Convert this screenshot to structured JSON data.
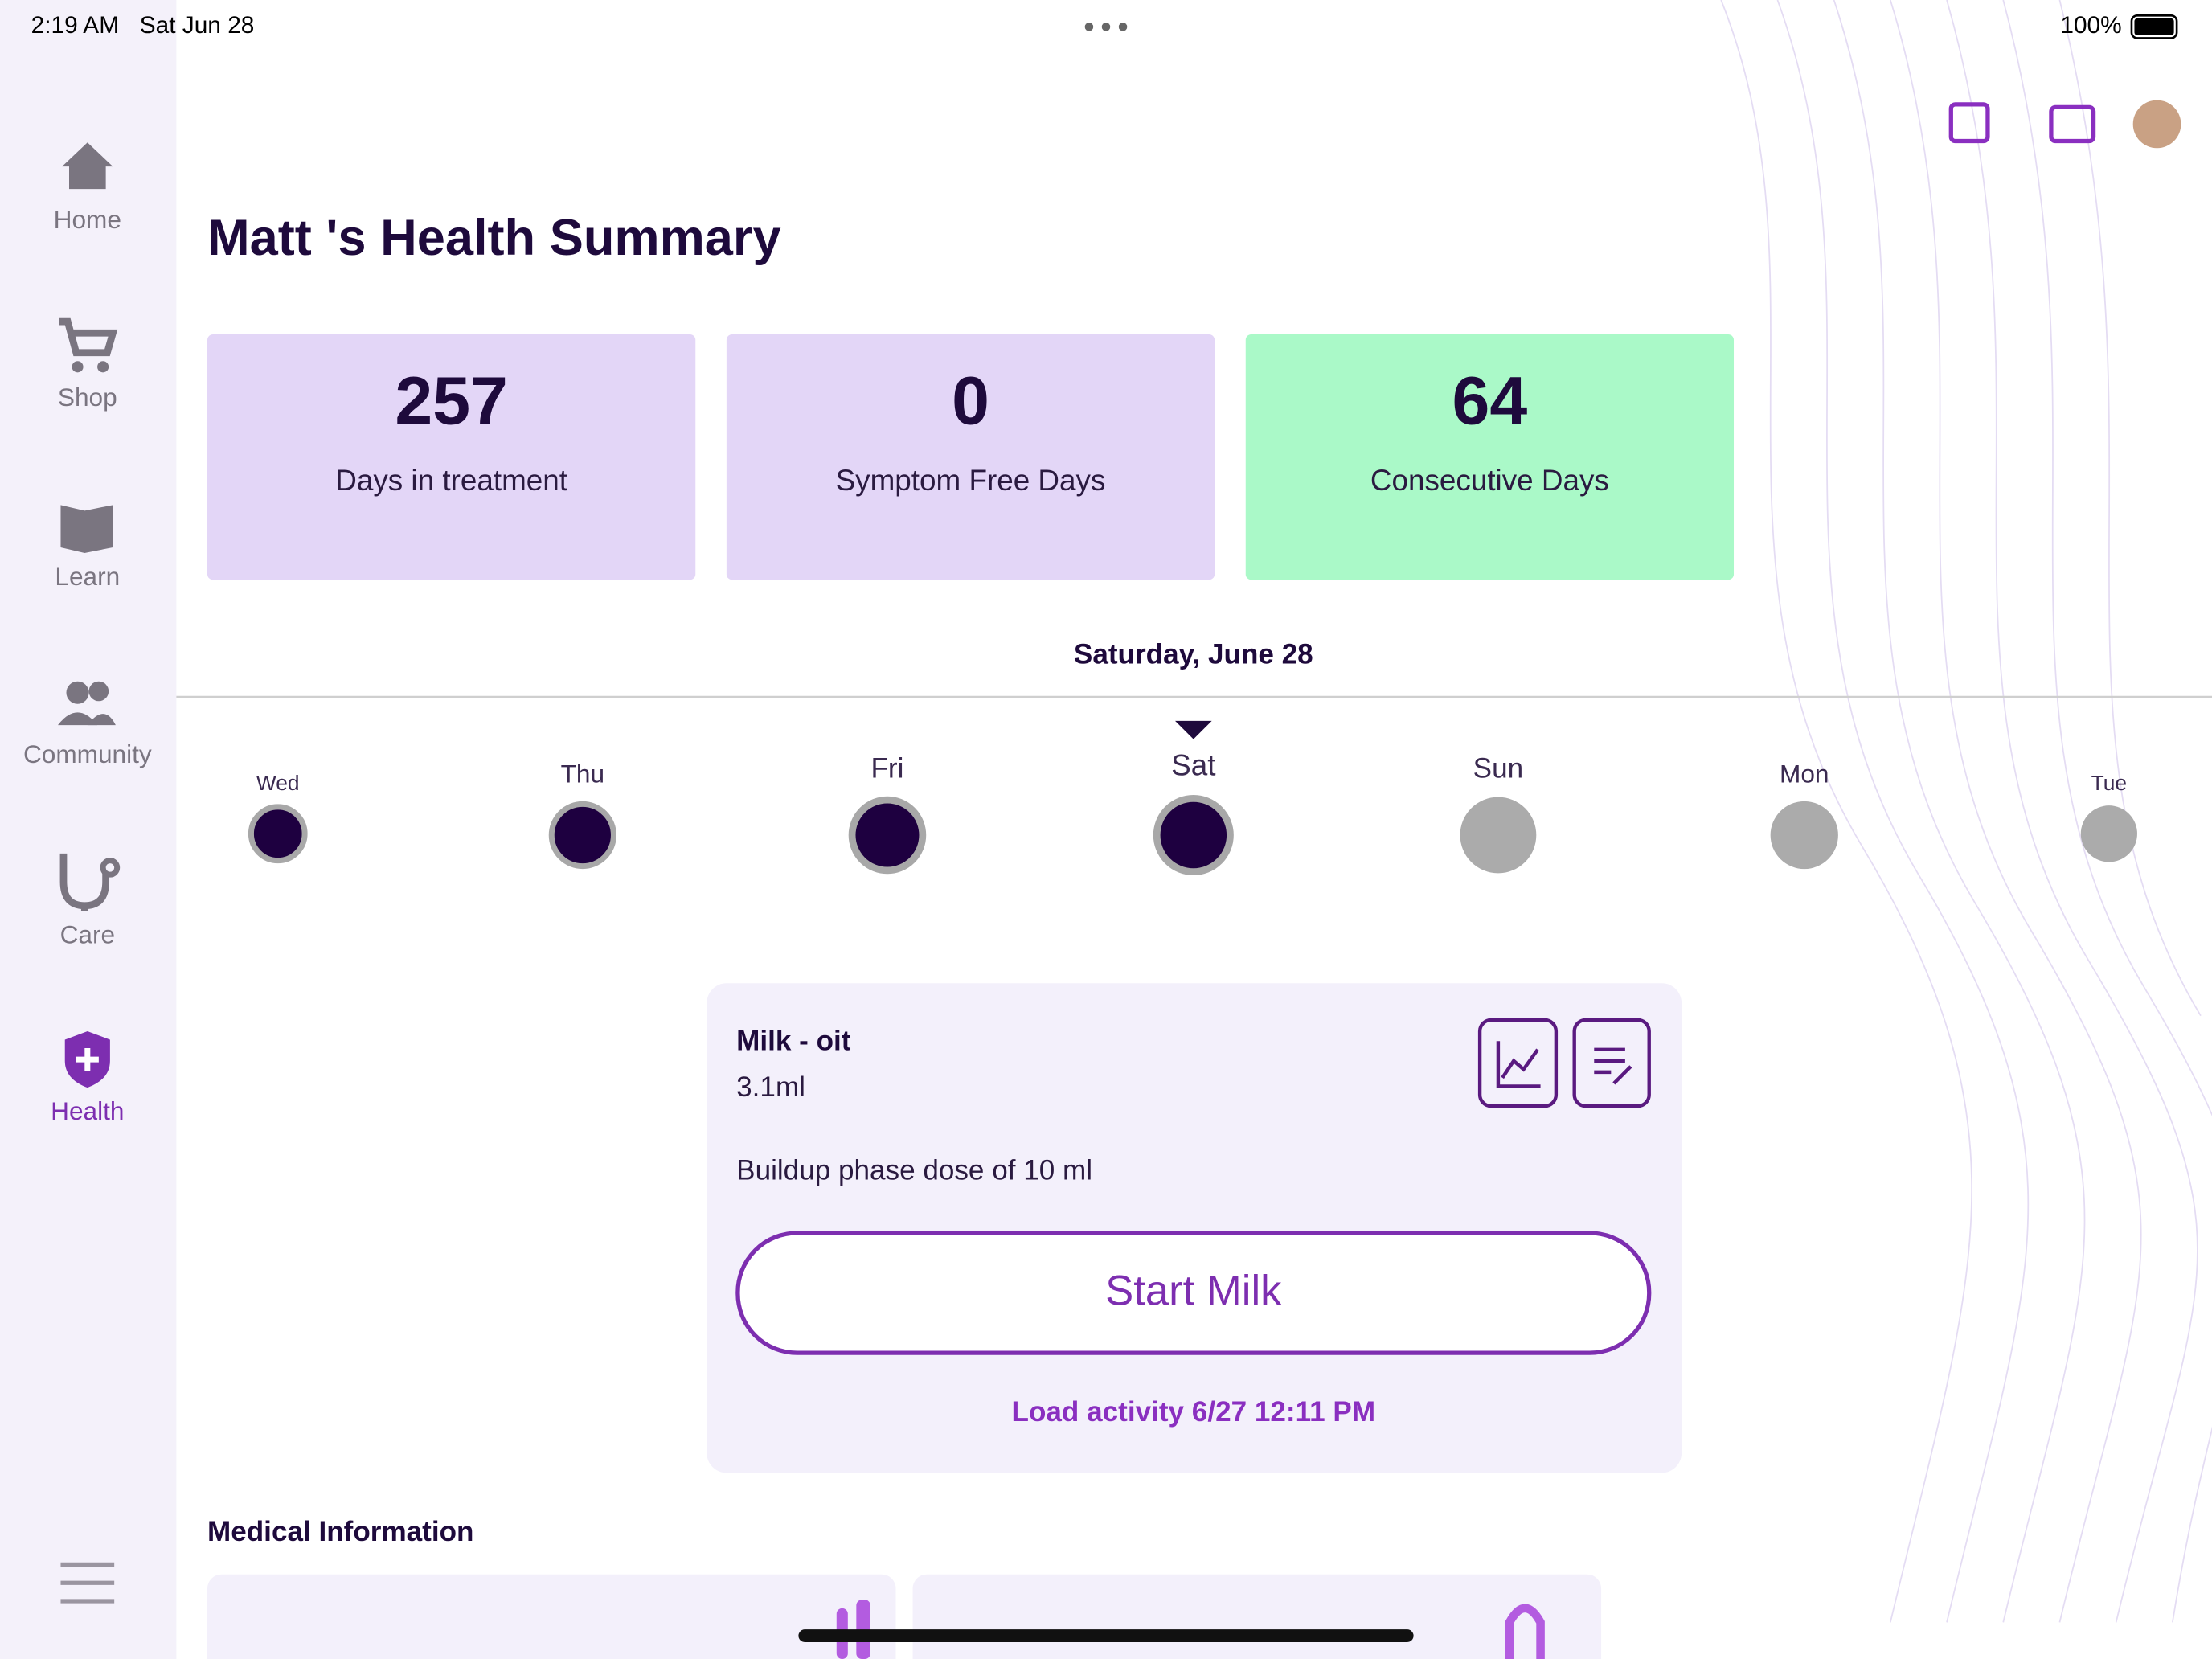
{
  "status": {
    "time": "2:19 AM",
    "date": "Sat Jun 28",
    "battery": "100%"
  },
  "sidebar": {
    "items": [
      "Home",
      "Shop",
      "Learn",
      "Community",
      "Care",
      "Health"
    ]
  },
  "header": {
    "title": "Matt 's Health Summary"
  },
  "stats": [
    {
      "value": "257",
      "label": "Days in treatment"
    },
    {
      "value": "0",
      "label": "Symptom Free Days"
    },
    {
      "value": "64",
      "label": "Consecutive Days"
    }
  ],
  "calendar": {
    "date": "Saturday, June 28",
    "days": [
      "Wed",
      "Thu",
      "Fri",
      "Sat",
      "Sun",
      "Mon",
      "Tue"
    ]
  },
  "card": {
    "name": "Milk - oit",
    "amount": "3.1ml",
    "description": "Buildup phase dose of 10 ml",
    "button": "Start Milk",
    "activity": "Load activity 6/27 12:11 PM"
  },
  "section": {
    "title": "Medical Information"
  }
}
